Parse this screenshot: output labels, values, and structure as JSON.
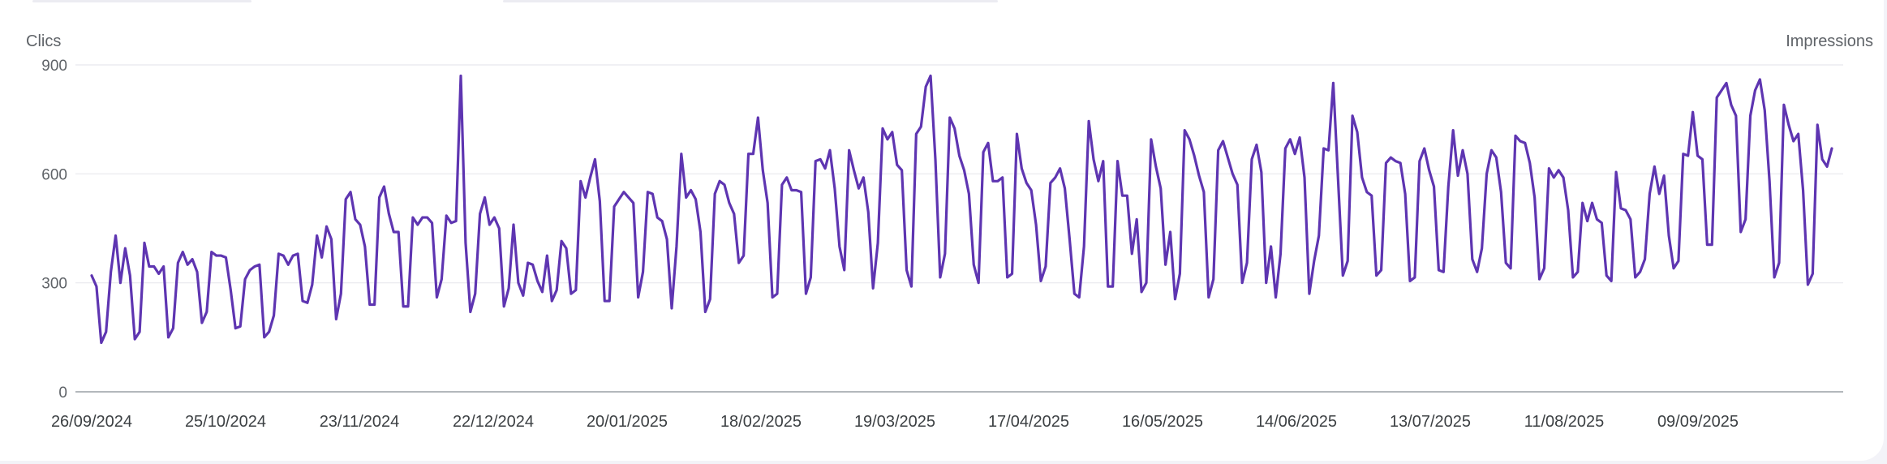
{
  "left_axis_title": "Clics",
  "right_axis_title": "Impressions",
  "colors": {
    "line": "#5e35b1",
    "grid": "#e8e8ee",
    "axis": "#9aa0a6"
  },
  "chart_data": {
    "type": "line",
    "title": "",
    "ylabel": "Clics",
    "y2label": "Impressions",
    "ylim": [
      0,
      900
    ],
    "yticks": [
      "0",
      "300",
      "600",
      "900"
    ],
    "xticks": [
      "26/09/2024",
      "25/10/2024",
      "23/11/2024",
      "22/12/2024",
      "20/01/2025",
      "18/02/2025",
      "19/03/2025",
      "17/04/2025",
      "16/05/2025",
      "14/06/2025",
      "13/07/2025",
      "11/08/2025",
      "09/09/2025"
    ],
    "x_start": "26/09/2024",
    "x_end": "08/10/2025",
    "grid": true,
    "series": [
      {
        "name": "Clics",
        "values": [
          320,
          290,
          135,
          165,
          330,
          430,
          300,
          395,
          320,
          145,
          165,
          410,
          345,
          345,
          325,
          345,
          150,
          175,
          355,
          385,
          350,
          365,
          330,
          190,
          220,
          385,
          375,
          375,
          370,
          280,
          175,
          180,
          310,
          335,
          345,
          350,
          150,
          165,
          210,
          380,
          375,
          350,
          375,
          380,
          250,
          245,
          295,
          430,
          370,
          455,
          420,
          200,
          270,
          530,
          550,
          475,
          460,
          400,
          240,
          240,
          535,
          565,
          490,
          440,
          440,
          235,
          235,
          480,
          460,
          480,
          480,
          465,
          260,
          310,
          485,
          465,
          470,
          870,
          410,
          220,
          270,
          490,
          535,
          460,
          480,
          450,
          235,
          285,
          460,
          300,
          265,
          355,
          350,
          305,
          275,
          375,
          250,
          280,
          415,
          395,
          270,
          280,
          580,
          535,
          590,
          640,
          525,
          250,
          250,
          510,
          530,
          550,
          535,
          520,
          260,
          330,
          550,
          545,
          480,
          470,
          420,
          230,
          400,
          655,
          535,
          555,
          530,
          440,
          220,
          255,
          545,
          580,
          570,
          520,
          490,
          355,
          375,
          655,
          655,
          755,
          610,
          520,
          260,
          270,
          570,
          590,
          555,
          555,
          550,
          270,
          315,
          635,
          640,
          615,
          665,
          560,
          400,
          335,
          665,
          610,
          560,
          590,
          495,
          285,
          410,
          725,
          695,
          715,
          625,
          610,
          335,
          290,
          710,
          730,
          840,
          870,
          640,
          315,
          380,
          755,
          725,
          650,
          610,
          545,
          350,
          300,
          660,
          685,
          580,
          580,
          590,
          315,
          325,
          710,
          615,
          575,
          555,
          460,
          305,
          345,
          575,
          590,
          615,
          560,
          420,
          270,
          260,
          400,
          745,
          640,
          580,
          635,
          290,
          290,
          635,
          540,
          540,
          380,
          475,
          275,
          300,
          695,
          620,
          560,
          350,
          440,
          255,
          325,
          720,
          695,
          650,
          595,
          550,
          260,
          310,
          665,
          690,
          645,
          600,
          570,
          300,
          355,
          640,
          680,
          605,
          300,
          400,
          260,
          380,
          670,
          695,
          655,
          700,
          590,
          270,
          360,
          430,
          670,
          665,
          850,
          585,
          320,
          360,
          760,
          715,
          590,
          550,
          540,
          320,
          335,
          630,
          645,
          635,
          630,
          545,
          305,
          315,
          635,
          670,
          610,
          565,
          335,
          330,
          565,
          720,
          595,
          665,
          600,
          365,
          330,
          395,
          600,
          665,
          645,
          550,
          355,
          340,
          705,
          690,
          685,
          630,
          535,
          310,
          340,
          615,
          590,
          610,
          590,
          500,
          315,
          330,
          520,
          470,
          520,
          475,
          465,
          320,
          305,
          605,
          505,
          500,
          475,
          315,
          330,
          365,
          545,
          620,
          545,
          595,
          430,
          340,
          360,
          655,
          650,
          770,
          650,
          640,
          405,
          405,
          810,
          830,
          850,
          790,
          760,
          440,
          475,
          760,
          830,
          860,
          775,
          580,
          315,
          355,
          790,
          735,
          690,
          710,
          555,
          295,
          325,
          735,
          640,
          620,
          670
        ]
      }
    ]
  }
}
